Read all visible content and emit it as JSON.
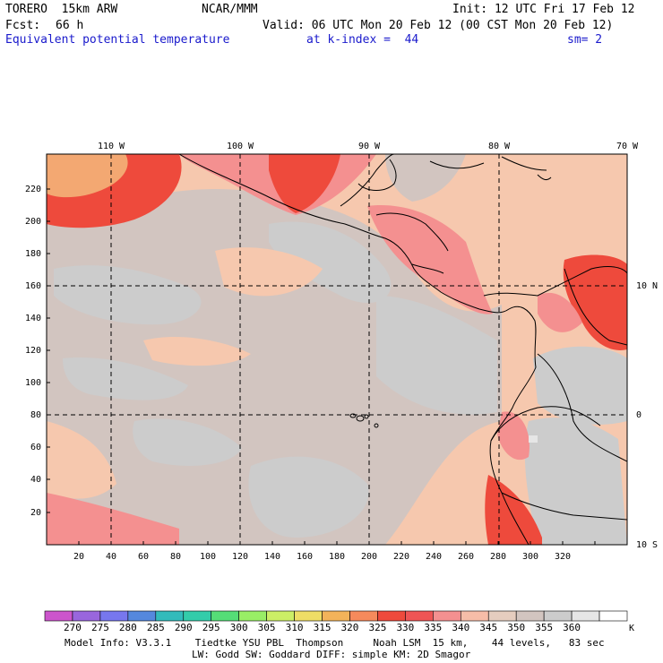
{
  "header": {
    "model": "TORERO  15km ARW",
    "org": "NCAR/MMM",
    "init": "Init: 12 UTC Fri 17 Feb 12",
    "fcst_label": "Fcst:",
    "fcst_value": "66 h",
    "valid": "Valid: 06 UTC Mon 20 Feb 12 (00 CST Mon 20 Feb 12)",
    "field": "Equivalent potential temperature",
    "level": "at k-index =  44",
    "smooth": "sm= 2"
  },
  "map": {
    "top_lon_labels": [
      "110 W",
      "100 W",
      "90 W",
      "80 W",
      "70 W"
    ],
    "right_lat_labels": [
      "10 N",
      "0",
      "10 S"
    ],
    "x_axis_ticks": [
      "20",
      "40",
      "60",
      "80",
      "100",
      "120",
      "140",
      "160",
      "180",
      "200",
      "220",
      "240",
      "260",
      "280",
      "300",
      "320"
    ],
    "y_axis_ticks": [
      "20",
      "40",
      "60",
      "80",
      "100",
      "120",
      "140",
      "160",
      "180",
      "200",
      "220"
    ]
  },
  "colorbar": {
    "colors": [
      "#cc55cc",
      "#9966dd",
      "#7777ee",
      "#5588dd",
      "#33bbbb",
      "#33ccaa",
      "#55dd77",
      "#99ee66",
      "#ccee66",
      "#eedd66",
      "#f3b35a",
      "#f58a5c",
      "#ee4a3c",
      "#ee5555",
      "#f49090",
      "#f6bda8",
      "#e5cdbf",
      "#d2c5c0",
      "#cccccc",
      "#e6e6e6",
      "#ffffff"
    ],
    "labels": [
      "270",
      "275",
      "280",
      "285",
      "290",
      "295",
      "300",
      "305",
      "310",
      "315",
      "320",
      "325",
      "330",
      "335",
      "340",
      "345",
      "350",
      "355",
      "360"
    ],
    "unit": "K"
  },
  "footer": {
    "line1": "Model Info: V3.3.1    Tiedtke YSU PBL  Thompson     Noah LSM  15 km,    44 levels,   83 sec",
    "line2": "LW: Godd SW: Goddard DIFF: simple KM: 2D Smagor"
  }
}
